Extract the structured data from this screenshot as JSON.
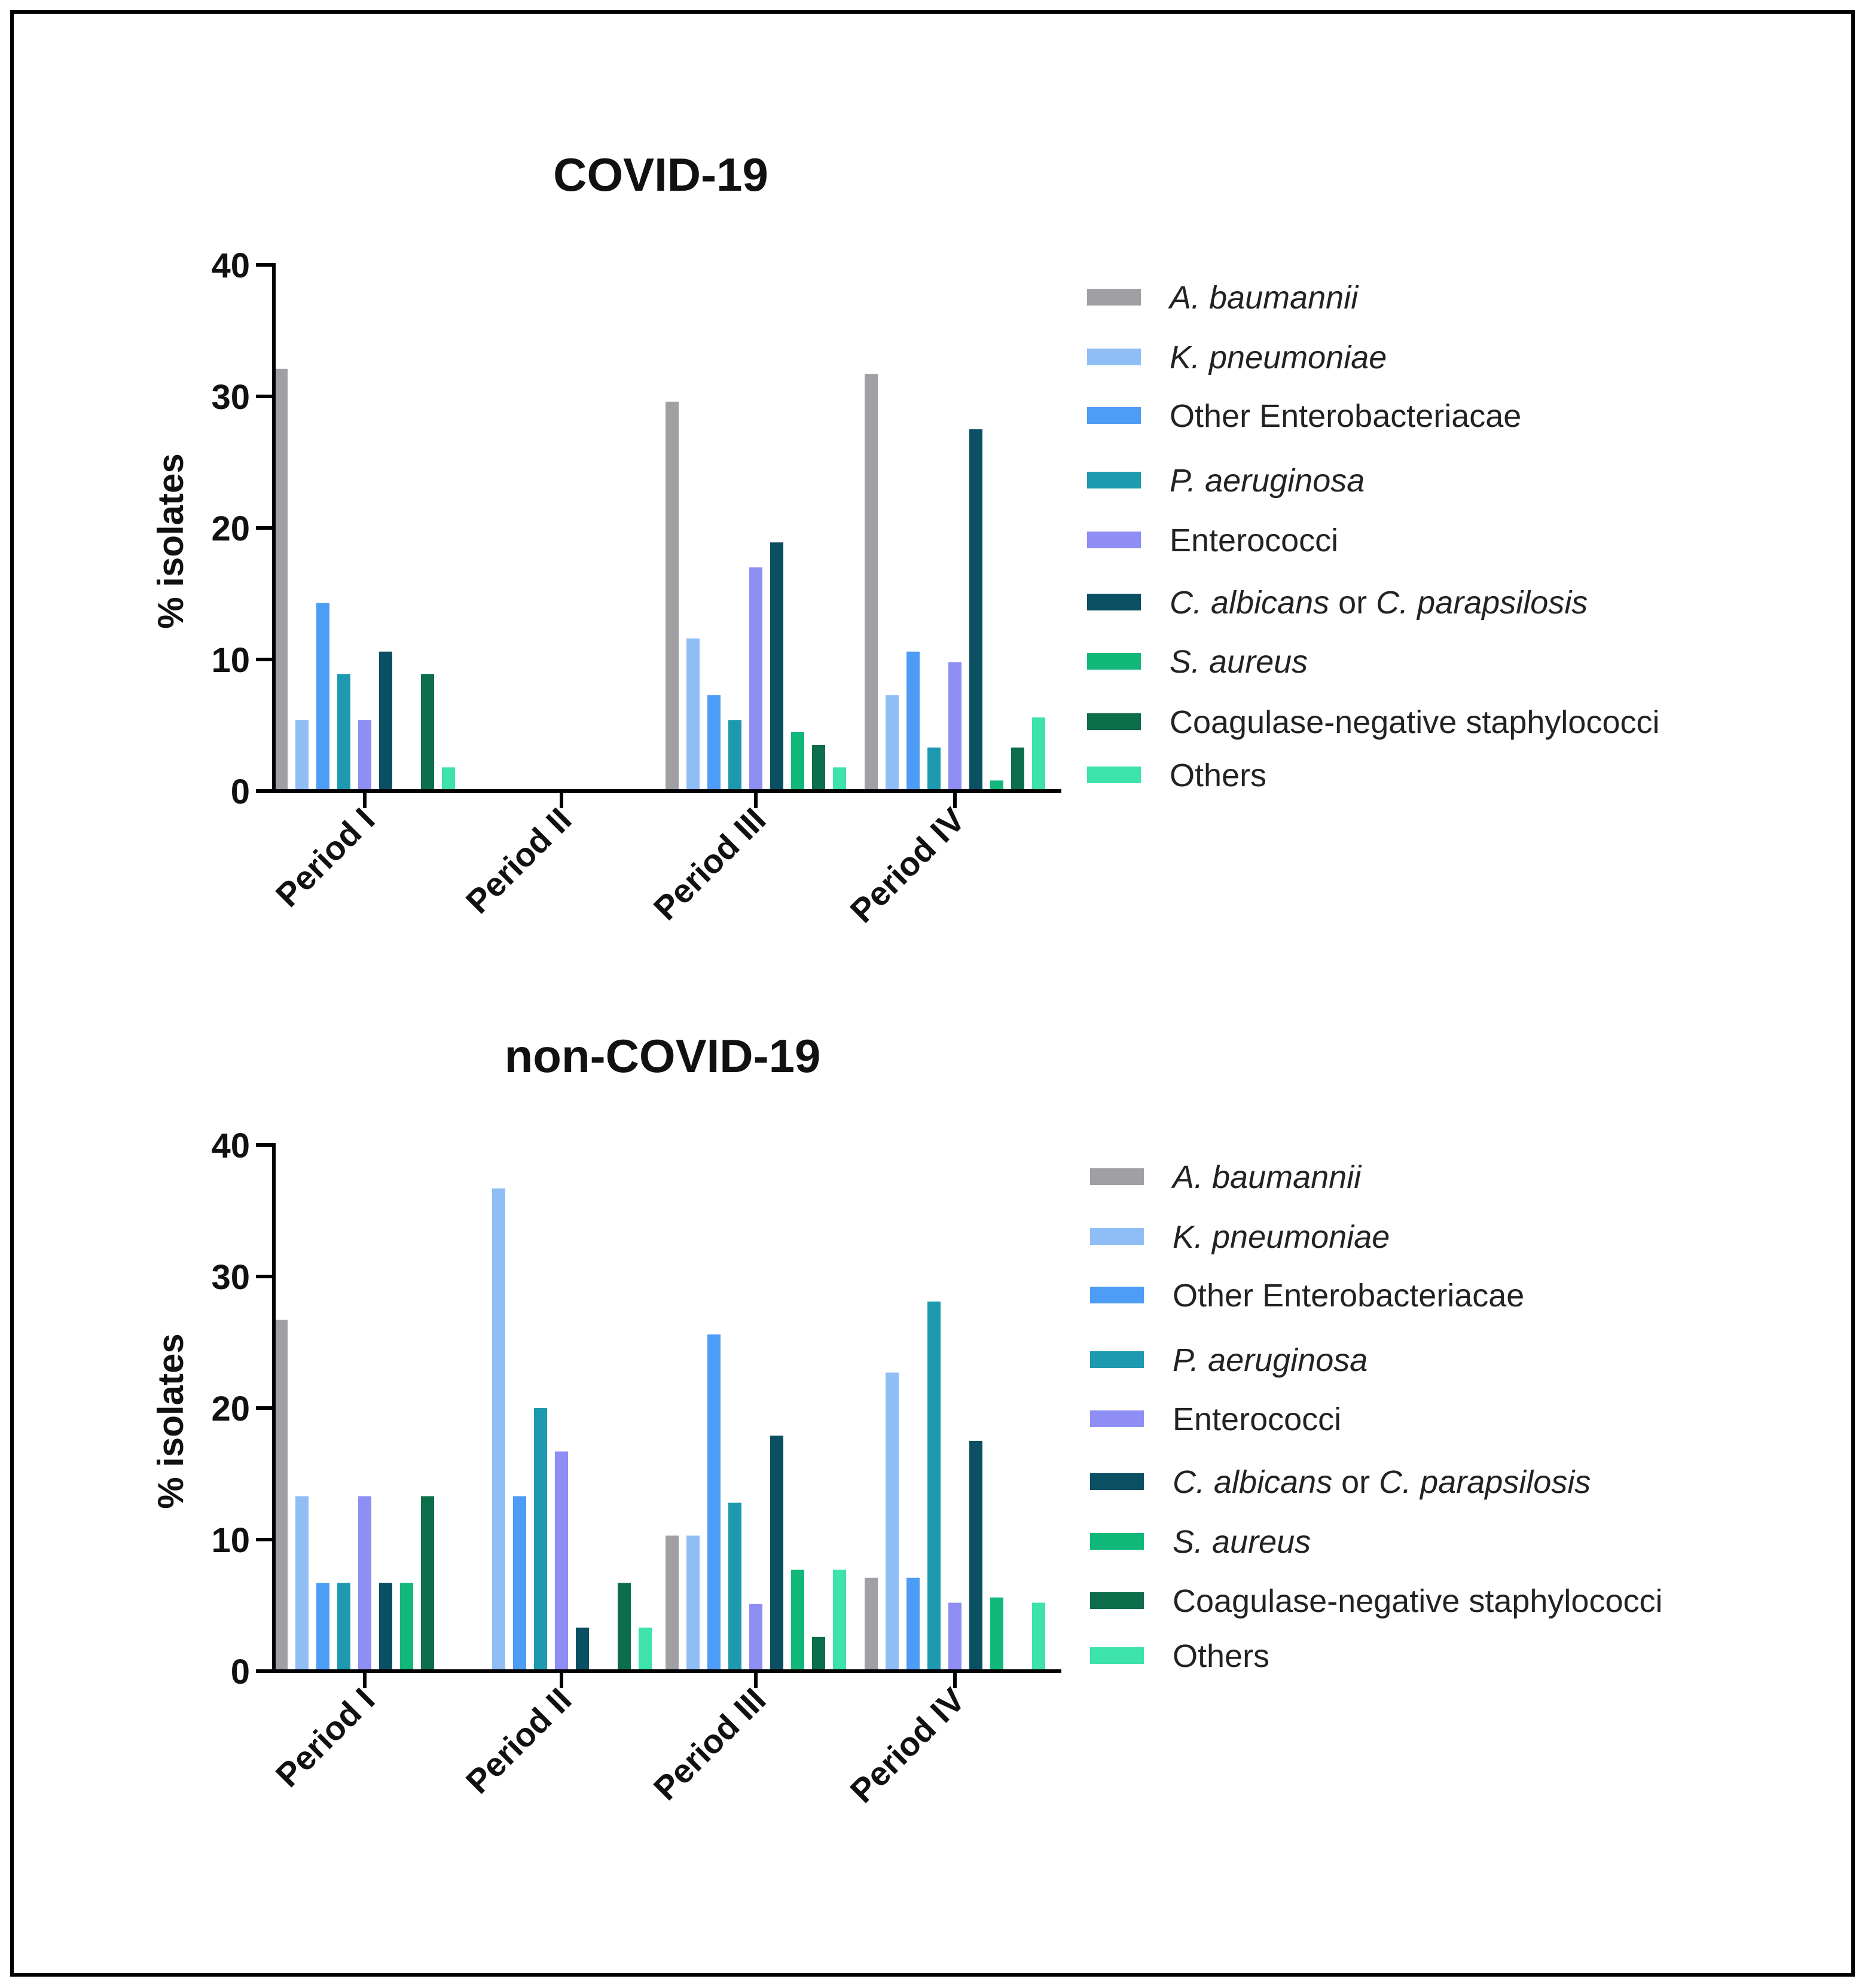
{
  "legend_labels": [
    [
      {
        "t": "A. baumannii",
        "i": true
      }
    ],
    [
      {
        "t": "K. pneumoniae",
        "i": true
      }
    ],
    [
      {
        "t": "Other Enterobacteriacae",
        "i": false
      }
    ],
    [
      {
        "t": "P. aeruginosa",
        "i": true
      }
    ],
    [
      {
        "t": "Enterococci",
        "i": false
      }
    ],
    [
      {
        "t": "C. albicans",
        "i": true
      },
      {
        "t": " or ",
        "i": false
      },
      {
        "t": "C. parapsilosis",
        "i": true
      }
    ],
    [
      {
        "t": "S. aureus",
        "i": true
      }
    ],
    [
      {
        "t": "Coagulase-negative staphylococci",
        "i": false
      }
    ],
    [
      {
        "t": "Others",
        "i": false
      }
    ]
  ],
  "colors": [
    "#a0a0a4",
    "#8fbef7",
    "#4d9cf5",
    "#1e9ab0",
    "#8e8ef5",
    "#0b4f62",
    "#12b87a",
    "#0c6e4a",
    "#3de3aa"
  ],
  "chart_data": [
    {
      "type": "bar",
      "title": "COVID-19",
      "ylabel": "% isolates",
      "xlabel": "",
      "ylim": [
        0,
        40
      ],
      "yticks": [
        0,
        10,
        20,
        30,
        40
      ],
      "categories": [
        "Period I",
        "Period II",
        "Period III",
        "Period IV"
      ],
      "series": [
        {
          "name": "A. baumannii",
          "values": [
            32.1,
            0,
            29.6,
            31.7
          ]
        },
        {
          "name": "K. pneumoniae",
          "values": [
            5.4,
            0,
            11.6,
            7.3
          ]
        },
        {
          "name": "Other Enterobacteriacae",
          "values": [
            14.3,
            0,
            7.3,
            10.6
          ]
        },
        {
          "name": "P. aeruginosa",
          "values": [
            8.9,
            0,
            5.4,
            3.3
          ]
        },
        {
          "name": "Enterococci",
          "values": [
            5.4,
            0,
            17.0,
            9.8
          ]
        },
        {
          "name": "C. albicans or C. parapsilosis",
          "values": [
            10.6,
            0,
            18.9,
            27.5
          ]
        },
        {
          "name": "S. aureus",
          "values": [
            0,
            0,
            4.5,
            0.8
          ]
        },
        {
          "name": "Coagulase-negative staphylococci",
          "values": [
            8.9,
            0,
            3.5,
            3.3
          ]
        },
        {
          "name": "Others",
          "values": [
            1.8,
            0,
            1.8,
            5.6
          ]
        }
      ]
    },
    {
      "type": "bar",
      "title": "non-COVID-19",
      "ylabel": "% isolates",
      "xlabel": "",
      "ylim": [
        0,
        40
      ],
      "yticks": [
        0,
        10,
        20,
        30,
        40
      ],
      "categories": [
        "Period I",
        "Period II",
        "Period III",
        "Period IV"
      ],
      "series": [
        {
          "name": "A. baumannii",
          "values": [
            26.7,
            0,
            10.3,
            7.1
          ]
        },
        {
          "name": "K. pneumoniae",
          "values": [
            13.3,
            36.7,
            10.3,
            22.7
          ]
        },
        {
          "name": "Other Enterobacteriacae",
          "values": [
            6.7,
            13.3,
            25.6,
            7.1
          ]
        },
        {
          "name": "P. aeruginosa",
          "values": [
            6.7,
            20.0,
            12.8,
            28.1
          ]
        },
        {
          "name": "Enterococci",
          "values": [
            13.3,
            16.7,
            5.1,
            5.2
          ]
        },
        {
          "name": "C. albicans or C. parapsilosis",
          "values": [
            6.7,
            3.3,
            17.9,
            17.5
          ]
        },
        {
          "name": "S. aureus",
          "values": [
            6.7,
            0,
            7.7,
            5.6
          ]
        },
        {
          "name": "Coagulase-negative staphylococci",
          "values": [
            13.3,
            6.7,
            2.6,
            0
          ]
        },
        {
          "name": "Others",
          "values": [
            0,
            3.3,
            7.7,
            5.2
          ]
        }
      ]
    }
  ]
}
